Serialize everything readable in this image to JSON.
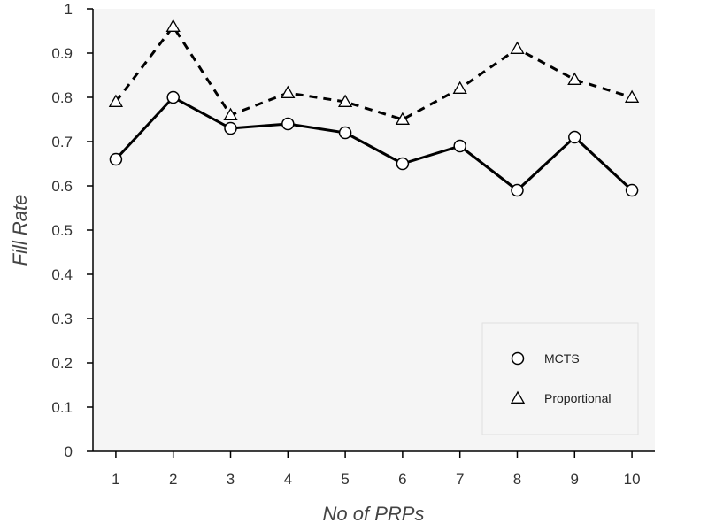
{
  "chart_data": {
    "type": "line",
    "xlabel": "No of PRPs",
    "ylabel": "Fill Rate",
    "x": [
      1,
      2,
      3,
      4,
      5,
      6,
      7,
      8,
      9,
      10
    ],
    "xlim": [
      0.6,
      10.4
    ],
    "ylim": [
      0,
      1
    ],
    "yticks": [
      "0",
      "0.1",
      "0.2",
      "0.3",
      "0.4",
      "0.5",
      "0.6",
      "0.7",
      "0.8",
      "0.9",
      "1"
    ],
    "xticks": [
      "1",
      "2",
      "3",
      "4",
      "5",
      "6",
      "7",
      "8",
      "9",
      "10"
    ],
    "grid": false,
    "legend_position": "bottom-right",
    "plot_background": "#f5f5f5",
    "series": [
      {
        "name": "MCTS",
        "marker": "circle",
        "line_style": "solid",
        "color": "#000000",
        "values": [
          0.66,
          0.8,
          0.73,
          0.74,
          0.72,
          0.65,
          0.69,
          0.59,
          0.71,
          0.59
        ]
      },
      {
        "name": "Proportional",
        "marker": "triangle",
        "line_style": "dashed",
        "color": "#000000",
        "values": [
          0.79,
          0.96,
          0.76,
          0.81,
          0.79,
          0.75,
          0.82,
          0.91,
          0.84,
          0.8
        ]
      }
    ]
  }
}
